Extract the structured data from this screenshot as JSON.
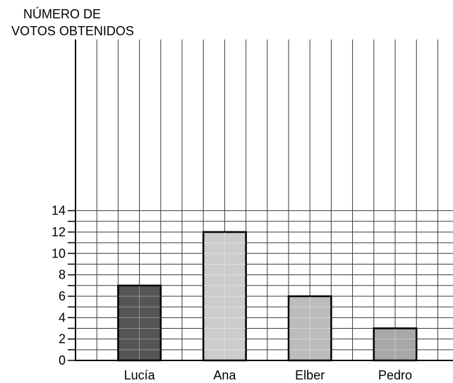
{
  "chart_data": {
    "type": "bar",
    "ylabel_lines": [
      "NÚMERO DE",
      "VOTOS OBTENIDOS"
    ],
    "categories": [
      "Lucía",
      "Ana",
      "Elber",
      "Pedro"
    ],
    "values": [
      7,
      12,
      6,
      3
    ],
    "colors": [
      "#555555",
      "#cccccc",
      "#bcbcbc",
      "#a7a7a7"
    ],
    "ylim": [
      0,
      14.5
    ],
    "yticks": [
      0,
      2,
      4,
      6,
      8,
      10,
      12,
      14
    ],
    "grid": true
  }
}
